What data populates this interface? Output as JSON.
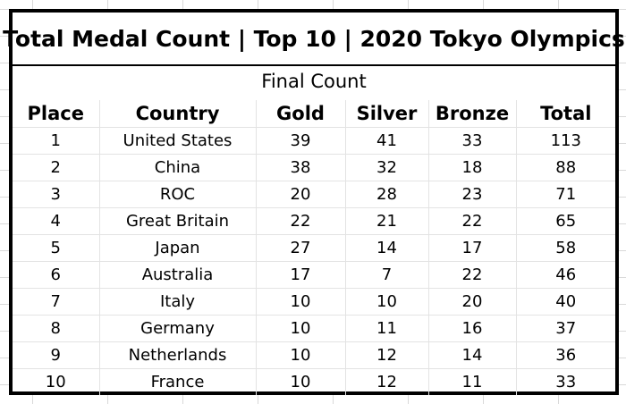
{
  "title": "Total Medal Count | Top 10 | 2020 Tokyo Olympics",
  "subtitle": "Final Count",
  "columns": [
    "Place",
    "Country",
    "Gold",
    "Silver",
    "Bronze",
    "Total"
  ],
  "rows": [
    [
      "1",
      "United States",
      "39",
      "41",
      "33",
      "113"
    ],
    [
      "2",
      "China",
      "38",
      "32",
      "18",
      "88"
    ],
    [
      "3",
      "ROC",
      "20",
      "28",
      "23",
      "71"
    ],
    [
      "4",
      "Great Britain",
      "22",
      "21",
      "22",
      "65"
    ],
    [
      "5",
      "Japan",
      "27",
      "14",
      "17",
      "58"
    ],
    [
      "6",
      "Australia",
      "17",
      "7",
      "22",
      "46"
    ],
    [
      "7",
      "Italy",
      "10",
      "10",
      "20",
      "40"
    ],
    [
      "8",
      "Germany",
      "10",
      "11",
      "16",
      "37"
    ],
    [
      "9",
      "Netherlands",
      "10",
      "12",
      "14",
      "36"
    ],
    [
      "10",
      "France",
      "10",
      "12",
      "11",
      "33"
    ]
  ]
}
